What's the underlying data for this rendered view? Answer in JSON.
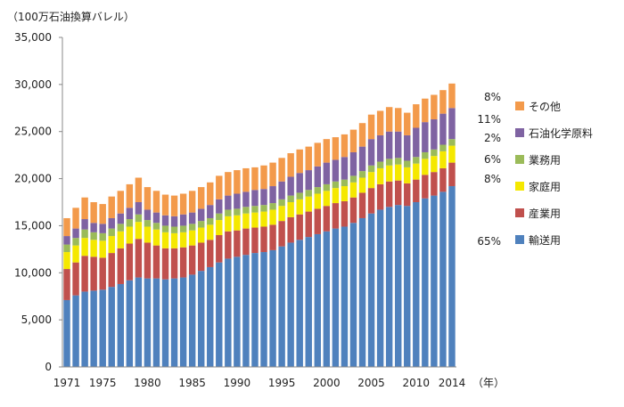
{
  "unit_label": "（100万石油換算バレル）",
  "x_unit_label": "（年）",
  "legend": [
    {
      "label": "その他",
      "color": "#F39A4B"
    },
    {
      "label": "石油化学原料",
      "color": "#7F63A2"
    },
    {
      "label": "業務用",
      "color": "#9BBB59"
    },
    {
      "label": "家庭用",
      "color": "#F5E800"
    },
    {
      "label": "産業用",
      "color": "#C0504D"
    },
    {
      "label": "輸送用",
      "color": "#4F81BD"
    }
  ],
  "shares_2014": [
    "8%",
    "11%",
    "2%",
    "6%",
    "8%",
    "65%"
  ],
  "chart_data": {
    "type": "bar",
    "stacked": true,
    "xlabel": "（年）",
    "ylabel": "（100万石油換算バレル）",
    "ylim": [
      0,
      35000
    ],
    "yticks": [
      "0",
      "5,000",
      "10,000",
      "15,000",
      "20,000",
      "25,000",
      "30,000",
      "35,000"
    ],
    "xticks": [
      "1971",
      "1975",
      "1980",
      "1985",
      "1990",
      "1995",
      "2000",
      "2005",
      "2010",
      "2014"
    ],
    "categories": [
      1971,
      1972,
      1973,
      1974,
      1975,
      1976,
      1977,
      1978,
      1979,
      1980,
      1981,
      1982,
      1983,
      1984,
      1985,
      1986,
      1987,
      1988,
      1989,
      1990,
      1991,
      1992,
      1993,
      1994,
      1995,
      1996,
      1997,
      1998,
      1999,
      2000,
      2001,
      2002,
      2003,
      2004,
      2005,
      2006,
      2007,
      2008,
      2009,
      2010,
      2011,
      2012,
      2013,
      2014
    ],
    "series": [
      {
        "name": "輸送用",
        "color": "#4F81BD",
        "values": [
          7100,
          7600,
          8000,
          8100,
          8200,
          8500,
          8800,
          9200,
          9500,
          9400,
          9400,
          9300,
          9400,
          9500,
          9800,
          10200,
          10600,
          11100,
          11500,
          11700,
          11900,
          12100,
          12200,
          12400,
          12800,
          13200,
          13500,
          13800,
          14100,
          14400,
          14700,
          14900,
          15300,
          15800,
          16300,
          16700,
          17000,
          17200,
          17100,
          17500,
          17900,
          18200,
          18600,
          19200
        ]
      },
      {
        "name": "産業用",
        "color": "#C0504D",
        "values": [
          3300,
          3500,
          3800,
          3600,
          3400,
          3600,
          3800,
          3900,
          4100,
          3800,
          3500,
          3300,
          3200,
          3200,
          3100,
          3000,
          2900,
          2900,
          2900,
          2800,
          2800,
          2700,
          2700,
          2700,
          2700,
          2700,
          2700,
          2700,
          2700,
          2700,
          2700,
          2700,
          2700,
          2700,
          2700,
          2700,
          2700,
          2600,
          2400,
          2400,
          2500,
          2500,
          2500,
          2500
        ]
      },
      {
        "name": "家庭用",
        "color": "#F5E800",
        "values": [
          1800,
          1800,
          1900,
          1800,
          1800,
          1800,
          1800,
          1800,
          1800,
          1700,
          1700,
          1700,
          1600,
          1600,
          1600,
          1600,
          1600,
          1600,
          1600,
          1600,
          1600,
          1600,
          1600,
          1600,
          1600,
          1600,
          1600,
          1600,
          1600,
          1600,
          1600,
          1600,
          1600,
          1600,
          1700,
          1700,
          1700,
          1700,
          1700,
          1700,
          1700,
          1700,
          1800,
          1800
        ]
      },
      {
        "name": "業務用",
        "color": "#9BBB59",
        "values": [
          800,
          800,
          900,
          800,
          800,
          800,
          800,
          800,
          800,
          700,
          700,
          700,
          700,
          700,
          700,
          700,
          700,
          700,
          700,
          700,
          700,
          700,
          700,
          700,
          700,
          700,
          700,
          700,
          700,
          700,
          700,
          700,
          700,
          700,
          700,
          700,
          700,
          700,
          700,
          700,
          700,
          700,
          700,
          700
        ]
      },
      {
        "name": "石油化学原料",
        "color": "#7F63A2",
        "values": [
          900,
          1000,
          1100,
          1000,
          1000,
          1100,
          1100,
          1200,
          1300,
          1100,
          1100,
          1100,
          1100,
          1200,
          1200,
          1300,
          1400,
          1500,
          1500,
          1600,
          1600,
          1700,
          1700,
          1800,
          1900,
          2000,
          2100,
          2100,
          2200,
          2300,
          2300,
          2400,
          2500,
          2600,
          2800,
          2800,
          2900,
          2800,
          2700,
          3100,
          3200,
          3200,
          3300,
          3300
        ]
      },
      {
        "name": "その他",
        "color": "#F39A4B",
        "values": [
          1900,
          2200,
          2300,
          2200,
          2100,
          2300,
          2400,
          2500,
          2600,
          2400,
          2300,
          2200,
          2200,
          2200,
          2300,
          2300,
          2400,
          2500,
          2500,
          2500,
          2500,
          2400,
          2500,
          2500,
          2500,
          2500,
          2500,
          2500,
          2500,
          2500,
          2400,
          2400,
          2400,
          2500,
          2600,
          2600,
          2600,
          2500,
          2400,
          2500,
          2500,
          2600,
          2500,
          2600
        ]
      }
    ]
  }
}
